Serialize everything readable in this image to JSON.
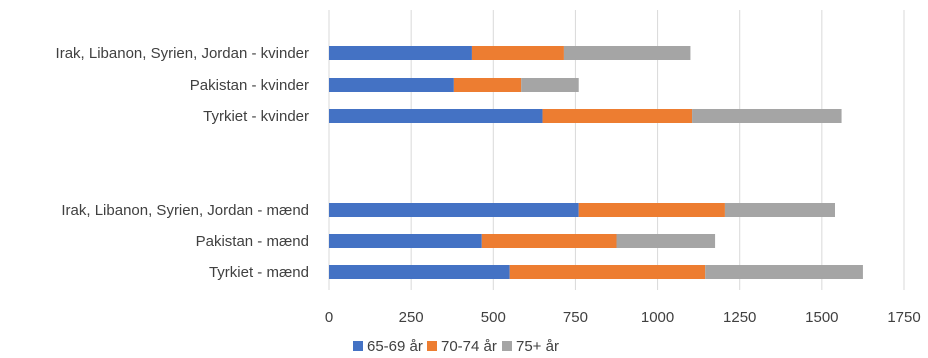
{
  "chart_data": {
    "type": "bar",
    "orientation": "horizontal",
    "stacked": true,
    "categories": [
      "Irak, Libanon, Syrien, Jordan - kvinder",
      "Pakistan - kvinder",
      "Tyrkiet - kvinder",
      "",
      "Irak, Libanon, Syrien, Jordan - mænd",
      "Pakistan - mænd",
      "Tyrkiet - mænd"
    ],
    "series": [
      {
        "name": "65-69 år",
        "color": "#4472C4",
        "values": [
          435,
          380,
          650,
          null,
          760,
          465,
          550
        ]
      },
      {
        "name": "70-74 år",
        "color": "#ED7D31",
        "values": [
          280,
          205,
          455,
          null,
          445,
          410,
          595
        ]
      },
      {
        "name": "75+ år",
        "color": "#A5A5A5",
        "values": [
          385,
          175,
          455,
          null,
          335,
          300,
          480
        ]
      }
    ],
    "xlim": [
      0,
      1750
    ],
    "xticks": [
      "0",
      "250",
      "500",
      "750",
      "1000",
      "1250",
      "1500",
      "1750"
    ],
    "grid": true,
    "legend_position": "bottom"
  }
}
